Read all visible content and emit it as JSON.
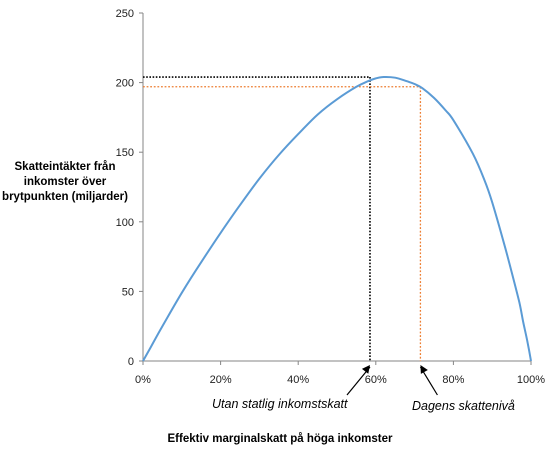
{
  "chart_data": {
    "type": "line",
    "ylabel": "Skatteintäkter från inkomster över brytpunkten (miljarder)",
    "xlabel": "Effektiv marginalskatt på höga inkomster",
    "xlim": [
      0,
      1
    ],
    "ylim": [
      0,
      250
    ],
    "xticks": [
      0,
      0.2,
      0.4,
      0.6,
      0.8,
      1.0
    ],
    "xtick_labels": [
      "0%",
      "20%",
      "40%",
      "60%",
      "80%",
      "100%"
    ],
    "yticks": [
      0,
      50,
      100,
      150,
      200,
      250
    ],
    "ytick_labels": [
      "0",
      "50",
      "100",
      "150",
      "200",
      "250"
    ],
    "grid": false,
    "series": [
      {
        "color": "#5b9bd5",
        "x": [
          0,
          0.02,
          0.05,
          0.1,
          0.15,
          0.2,
          0.25,
          0.3,
          0.35,
          0.4,
          0.45,
          0.5,
          0.55,
          0.58,
          0.6,
          0.62,
          0.65,
          0.68,
          0.7,
          0.72,
          0.75,
          0.78,
          0.8,
          0.85,
          0.88,
          0.9,
          0.93,
          0.95,
          0.97,
          0.98,
          0.99,
          1.0
        ],
        "y": [
          0,
          10,
          25,
          49,
          71,
          92,
          112,
          131,
          148,
          163,
          177,
          188,
          197,
          201,
          203,
          204,
          203.5,
          201,
          199,
          196,
          189,
          180,
          173,
          149,
          130,
          114,
          85,
          64,
          42,
          28,
          15,
          0
        ]
      }
    ],
    "markers": [
      {
        "x": 0.585,
        "y": 204,
        "color": "#000000",
        "style": "dotted"
      },
      {
        "x": 0.715,
        "y": 197,
        "color": "#ed7d31",
        "style": "dotted"
      }
    ],
    "annotations": [
      {
        "text": "Utan statlig inkomstskatt",
        "x": 0.585
      },
      {
        "text": "Dagens skattenivå",
        "x": 0.715
      }
    ]
  },
  "colors": {
    "curve": "#5b9bd5",
    "marker_black": "#000000",
    "marker_orange": "#ed7d31",
    "axis": "#868686"
  }
}
